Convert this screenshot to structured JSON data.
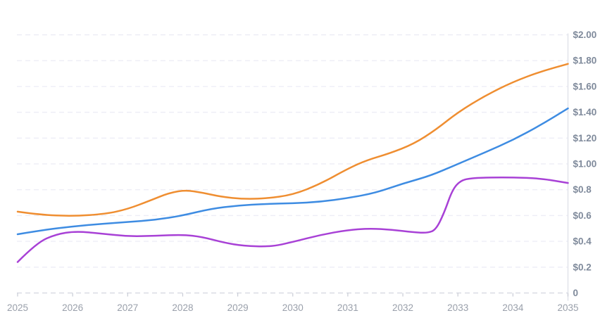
{
  "chart_data": {
    "type": "line",
    "title": "",
    "xlabel": "",
    "ylabel": "",
    "xlim": [
      2025,
      2035
    ],
    "ylim": [
      0,
      2.0
    ],
    "grid": "horizontal-dashed",
    "legend_position": "none",
    "y_axis_side": "right",
    "y_tick_values": [
      0,
      0.2,
      0.4,
      0.6,
      0.8,
      1.0,
      1.2,
      1.4,
      1.6,
      1.8,
      2.0
    ],
    "y_tick_labels": [
      "0",
      "$0.2",
      "$0.4",
      "$0.6",
      "$0.8",
      "$1.00",
      "$1.20",
      "$1.40",
      "$1.60",
      "$1.80",
      "$2.00"
    ],
    "x_tick_labels": [
      "2025",
      "2026",
      "2027",
      "2028",
      "2029",
      "2030",
      "2031",
      "2032",
      "2033",
      "2034",
      "2035"
    ],
    "series": [
      {
        "name": "orange-series",
        "color": "#ef8e31",
        "points": [
          [
            2025,
            0.63
          ],
          [
            2025.4,
            0.606
          ],
          [
            2026,
            0.595
          ],
          [
            2026.6,
            0.612
          ],
          [
            2027,
            0.65
          ],
          [
            2027.4,
            0.715
          ],
          [
            2027.75,
            0.775
          ],
          [
            2028.05,
            0.797
          ],
          [
            2028.35,
            0.778
          ],
          [
            2028.7,
            0.745
          ],
          [
            2029.1,
            0.728
          ],
          [
            2029.5,
            0.732
          ],
          [
            2030,
            0.76
          ],
          [
            2030.5,
            0.845
          ],
          [
            2031,
            0.963
          ],
          [
            2031.35,
            1.03
          ],
          [
            2031.75,
            1.08
          ],
          [
            2032.2,
            1.155
          ],
          [
            2032.6,
            1.265
          ],
          [
            2033,
            1.4
          ],
          [
            2033.5,
            1.53
          ],
          [
            2034,
            1.635
          ],
          [
            2034.5,
            1.715
          ],
          [
            2035,
            1.775
          ]
        ]
      },
      {
        "name": "blue-series",
        "color": "#3e8ce2",
        "points": [
          [
            2025,
            0.455
          ],
          [
            2025.5,
            0.49
          ],
          [
            2026,
            0.515
          ],
          [
            2026.5,
            0.535
          ],
          [
            2027,
            0.55
          ],
          [
            2027.5,
            0.566
          ],
          [
            2028,
            0.6
          ],
          [
            2028.5,
            0.652
          ],
          [
            2029,
            0.678
          ],
          [
            2029.5,
            0.69
          ],
          [
            2030,
            0.695
          ],
          [
            2030.5,
            0.706
          ],
          [
            2031,
            0.735
          ],
          [
            2031.5,
            0.775
          ],
          [
            2032,
            0.848
          ],
          [
            2032.5,
            0.908
          ],
          [
            2033,
            1.0
          ],
          [
            2033.5,
            1.09
          ],
          [
            2034,
            1.185
          ],
          [
            2034.5,
            1.3
          ],
          [
            2035,
            1.43
          ]
        ]
      },
      {
        "name": "purple-series",
        "color": "#a841d6",
        "points": [
          [
            2025,
            0.24
          ],
          [
            2025.35,
            0.39
          ],
          [
            2025.7,
            0.455
          ],
          [
            2026.05,
            0.478
          ],
          [
            2026.5,
            0.462
          ],
          [
            2027,
            0.438
          ],
          [
            2027.5,
            0.443
          ],
          [
            2028,
            0.452
          ],
          [
            2028.35,
            0.435
          ],
          [
            2028.75,
            0.39
          ],
          [
            2029.1,
            0.365
          ],
          [
            2029.6,
            0.358
          ],
          [
            2030,
            0.395
          ],
          [
            2030.5,
            0.45
          ],
          [
            2031,
            0.488
          ],
          [
            2031.4,
            0.5
          ],
          [
            2031.8,
            0.49
          ],
          [
            2032.2,
            0.47
          ],
          [
            2032.45,
            0.465
          ],
          [
            2032.6,
            0.49
          ],
          [
            2032.75,
            0.62
          ],
          [
            2032.9,
            0.8
          ],
          [
            2033.05,
            0.872
          ],
          [
            2033.25,
            0.89
          ],
          [
            2033.6,
            0.895
          ],
          [
            2034,
            0.895
          ],
          [
            2034.5,
            0.888
          ],
          [
            2035,
            0.852
          ]
        ]
      }
    ],
    "colors": {
      "background": "#ffffff",
      "gridline": "#ededf6",
      "axis_line_bottom": "#d9dbe3",
      "axis_line_right": "#e1e3ea",
      "tick": "#c9ccd6",
      "y_label": "#7f8a9b",
      "x_label": "#9aa0ab"
    }
  }
}
